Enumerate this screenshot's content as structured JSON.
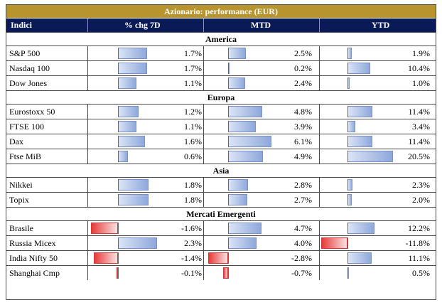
{
  "title": "Azionario: performance (EUR)",
  "headers": {
    "name": "Indici",
    "chg7d": "% chg 7D",
    "mtd": "MTD",
    "ytd": "YTD"
  },
  "colors": {
    "title_bg": "#b8942e",
    "header_bg": "#0a1a56",
    "positive_bar": "#8ea8db",
    "negative_bar": "#e83a3a"
  },
  "sections": [
    {
      "label": "America",
      "rows": [
        {
          "name": "S&P 500",
          "chg7d": "1.7%",
          "mtd": "2.5%",
          "ytd": "1.9%"
        },
        {
          "name": "Nasdaq 100",
          "chg7d": "1.7%",
          "mtd": "0.2%",
          "ytd": "10.4%"
        },
        {
          "name": "Dow Jones",
          "chg7d": "1.1%",
          "mtd": "2.4%",
          "ytd": "1.0%"
        }
      ]
    },
    {
      "label": "Europa",
      "rows": [
        {
          "name": "Eurostoxx 50",
          "chg7d": "1.2%",
          "mtd": "4.8%",
          "ytd": "11.4%"
        },
        {
          "name": "FTSE 100",
          "chg7d": "1.1%",
          "mtd": "3.9%",
          "ytd": "3.4%"
        },
        {
          "name": "Dax",
          "chg7d": "1.6%",
          "mtd": "6.1%",
          "ytd": "11.4%"
        },
        {
          "name": "Ftse MiB",
          "chg7d": "0.6%",
          "mtd": "4.9%",
          "ytd": "20.5%"
        }
      ]
    },
    {
      "label": "Asia",
      "rows": [
        {
          "name": "Nikkei",
          "chg7d": "1.8%",
          "mtd": "2.8%",
          "ytd": "2.3%"
        },
        {
          "name": "Topix",
          "chg7d": "1.8%",
          "mtd": "2.7%",
          "ytd": "2.0%"
        }
      ]
    },
    {
      "label": "Mercati Emergenti",
      "rows": [
        {
          "name": "Brasile",
          "chg7d": "-1.6%",
          "mtd": "4.7%",
          "ytd": "12.2%"
        },
        {
          "name": "Russia Micex",
          "chg7d": "2.3%",
          "mtd": "4.0%",
          "ytd": "-11.8%"
        },
        {
          "name": "India Nifty 50",
          "chg7d": "-1.4%",
          "mtd": "-2.8%",
          "ytd": "11.1%"
        },
        {
          "name": "Shanghai Cmp",
          "chg7d": "-0.1%",
          "mtd": "-0.7%",
          "ytd": "0.5%"
        }
      ]
    }
  ]
}
